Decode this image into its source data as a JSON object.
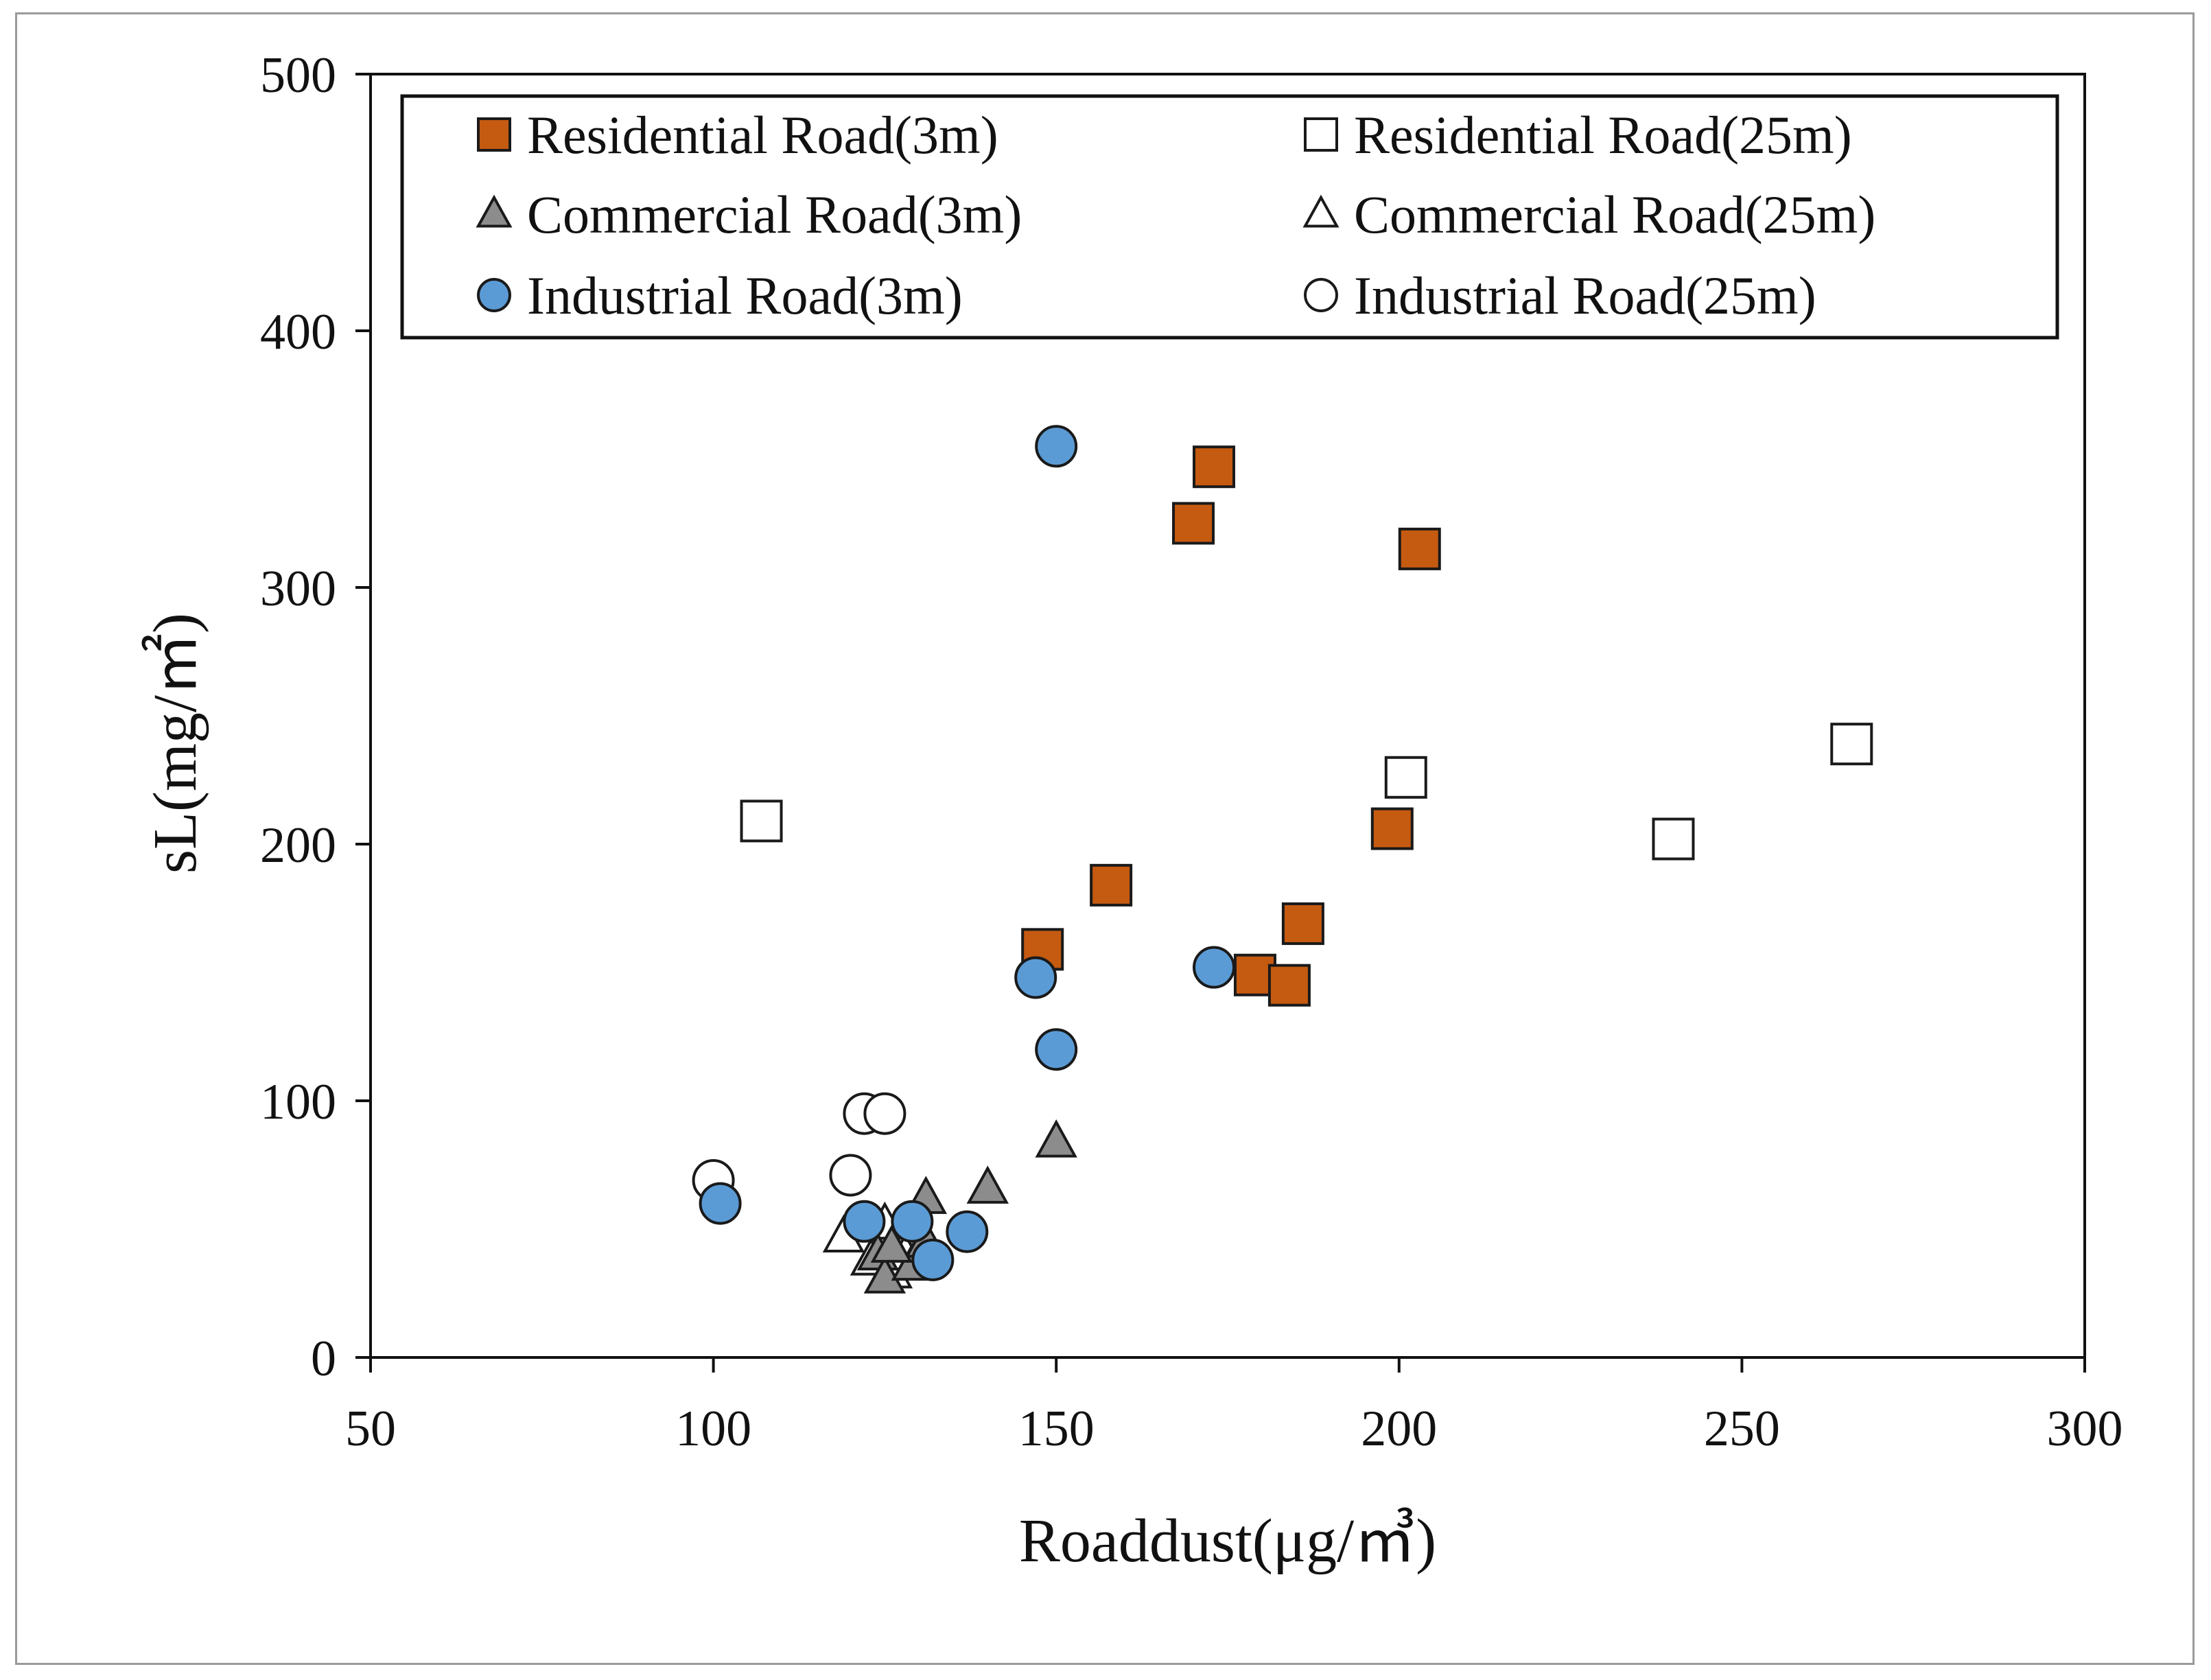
{
  "chart_data": {
    "type": "scatter",
    "title": "",
    "xlabel": "Roaddust(μg/㎥)",
    "ylabel": "sL(mg/㎡)",
    "xlim": [
      50,
      300
    ],
    "ylim": [
      0,
      500
    ],
    "xticks": [
      "50",
      "100",
      "150",
      "200",
      "250",
      "300"
    ],
    "yticks": [
      "0",
      "100",
      "200",
      "300",
      "400",
      "500"
    ],
    "grid": false,
    "legend_position": "top",
    "series": [
      {
        "name": "Residential Road(3m)",
        "marker": "square",
        "fill": "#c55a11",
        "stroke": "#1a1a1a",
        "points": [
          [
            173,
            347
          ],
          [
            170,
            325
          ],
          [
            203,
            315
          ],
          [
            199,
            206
          ],
          [
            158,
            184
          ],
          [
            148,
            159
          ],
          [
            186,
            169
          ],
          [
            179,
            149
          ],
          [
            184,
            145
          ]
        ]
      },
      {
        "name": "Residential Road(25m)",
        "marker": "square",
        "fill": "#ffffff",
        "stroke": "#1a1a1a",
        "points": [
          [
            107,
            209
          ],
          [
            201,
            226
          ],
          [
            240,
            202
          ],
          [
            266,
            239
          ]
        ]
      },
      {
        "name": "Commercial Road(3m)",
        "marker": "triangle",
        "fill": "#8c8c8c",
        "stroke": "#1a1a1a",
        "points": [
          [
            150,
            84
          ],
          [
            140,
            66
          ],
          [
            131,
            62
          ],
          [
            124,
            40
          ],
          [
            125,
            31
          ],
          [
            129,
            36
          ],
          [
            131,
            45
          ],
          [
            126,
            43
          ]
        ]
      },
      {
        "name": "Commercial Road(25m)",
        "marker": "triangle",
        "fill": "#ffffff",
        "stroke": "#1a1a1a",
        "points": [
          [
            119,
            47
          ],
          [
            123,
            38
          ],
          [
            126,
            33
          ],
          [
            125,
            52
          ],
          [
            128,
            40
          ]
        ]
      },
      {
        "name": "Industrial Road(3m)",
        "marker": "circle",
        "fill": "#5b9bd5",
        "stroke": "#1a1a1a",
        "points": [
          [
            150,
            355
          ],
          [
            173,
            152
          ],
          [
            147,
            148
          ],
          [
            150,
            120
          ],
          [
            101,
            60
          ],
          [
            122,
            53
          ],
          [
            129,
            53
          ],
          [
            137,
            49
          ],
          [
            132,
            38
          ]
        ]
      },
      {
        "name": "Industrial Road(25m)",
        "marker": "circle",
        "fill": "#ffffff",
        "stroke": "#1a1a1a",
        "points": [
          [
            100,
            69
          ],
          [
            122,
            95
          ],
          [
            125,
            95
          ],
          [
            120,
            71
          ]
        ]
      }
    ]
  }
}
